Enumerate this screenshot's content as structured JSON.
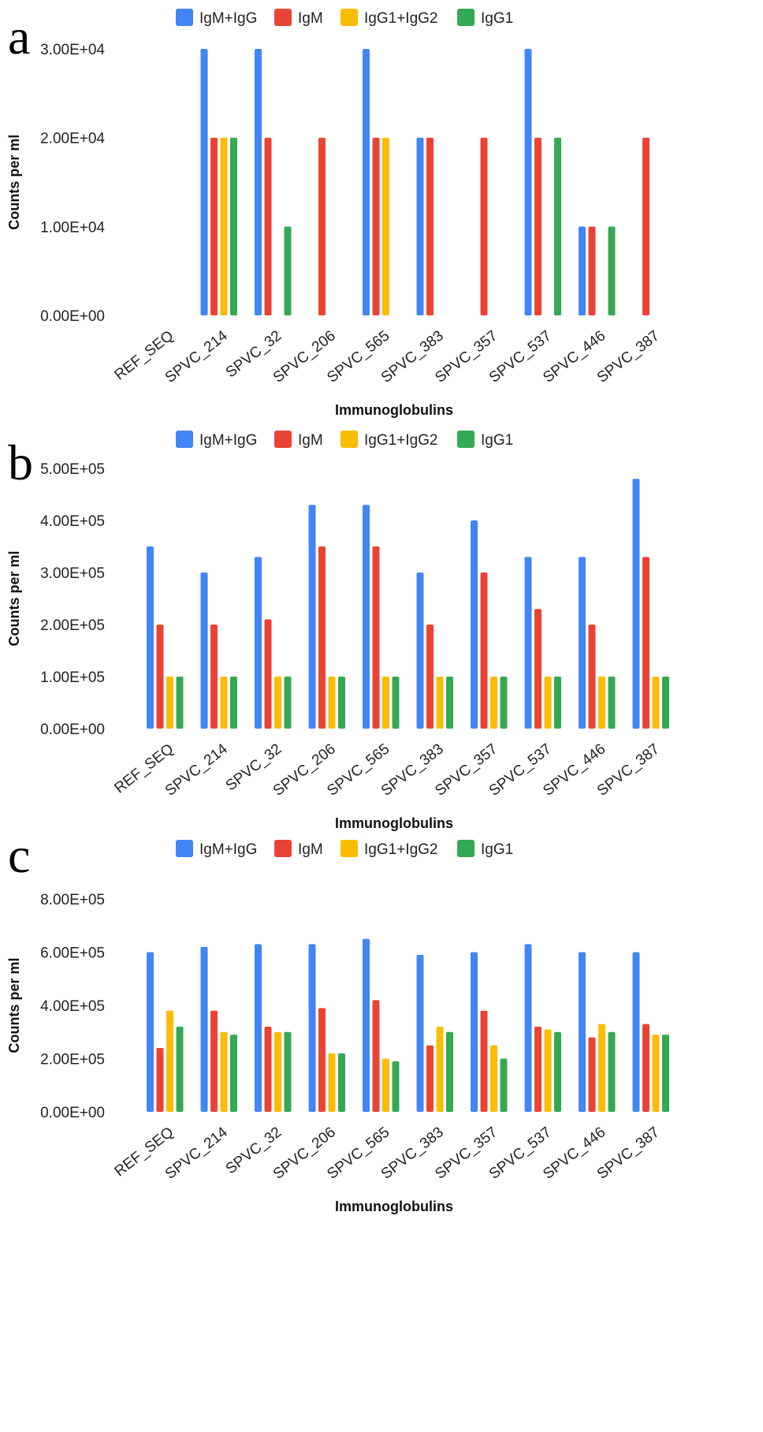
{
  "figure": {
    "colors": {
      "IgM+IgG": "#4285F4",
      "IgM": "#EA4335",
      "IgG1+IgG2": "#FBBC04",
      "IgG1": "#34A853"
    },
    "legend": [
      "IgM+IgG",
      "IgM",
      "IgG1+IgG2",
      "IgG1"
    ]
  },
  "chart_data": [
    {
      "panel": "a",
      "type": "bar",
      "title": "",
      "xlabel": "Immunoglobulins",
      "ylabel": "Counts per ml",
      "ylim": [
        0,
        30000
      ],
      "yticks": [
        "0.00E+00",
        "1.00E+04",
        "2.00E+04",
        "3.00E+04"
      ],
      "legend_position": "top",
      "categories": [
        "REF_SEQ",
        "SPVC_214",
        "SPVC_32",
        "SPVC_206",
        "SPVC_565",
        "SPVC_383",
        "SPVC_357",
        "SPVC_537",
        "SPVC_446",
        "SPVC_387"
      ],
      "series": [
        {
          "name": "IgM+IgG",
          "values": [
            0,
            30000,
            30000,
            0,
            30000,
            20000,
            0,
            30000,
            10000,
            0
          ]
        },
        {
          "name": "IgM",
          "values": [
            0,
            20000,
            20000,
            20000,
            20000,
            20000,
            20000,
            20000,
            10000,
            20000
          ]
        },
        {
          "name": "IgG1+IgG2",
          "values": [
            0,
            20000,
            0,
            0,
            20000,
            0,
            0,
            0,
            0,
            0
          ]
        },
        {
          "name": "IgG1",
          "values": [
            0,
            20000,
            10000,
            0,
            0,
            0,
            0,
            20000,
            10000,
            0
          ]
        }
      ]
    },
    {
      "panel": "b",
      "type": "bar",
      "title": "",
      "xlabel": "Immunoglobulins",
      "ylabel": "Counts per ml",
      "ylim": [
        0,
        500000
      ],
      "yticks": [
        "0.00E+00",
        "1.00E+05",
        "2.00E+05",
        "3.00E+05",
        "4.00E+05",
        "5.00E+05"
      ],
      "legend_position": "top",
      "categories": [
        "REF_SEQ",
        "SPVC_214",
        "SPVC_32",
        "SPVC_206",
        "SPVC_565",
        "SPVC_383",
        "SPVC_357",
        "SPVC_537",
        "SPVC_446",
        "SPVC_387"
      ],
      "series": [
        {
          "name": "IgM+IgG",
          "values": [
            350000,
            300000,
            330000,
            430000,
            430000,
            300000,
            400000,
            330000,
            330000,
            480000
          ]
        },
        {
          "name": "IgM",
          "values": [
            200000,
            200000,
            210000,
            350000,
            350000,
            200000,
            300000,
            230000,
            200000,
            330000
          ]
        },
        {
          "name": "IgG1+IgG2",
          "values": [
            100000,
            100000,
            100000,
            100000,
            100000,
            100000,
            100000,
            100000,
            100000,
            100000
          ]
        },
        {
          "name": "IgG1",
          "values": [
            100000,
            100000,
            100000,
            100000,
            100000,
            100000,
            100000,
            100000,
            100000,
            100000
          ]
        }
      ]
    },
    {
      "panel": "c",
      "type": "bar",
      "title": "",
      "xlabel": "Immunoglobulins",
      "ylabel": "Counts per ml",
      "ylim": [
        0,
        800000
      ],
      "yticks": [
        "0.00E+00",
        "2.00E+05",
        "4.00E+05",
        "6.00E+05",
        "8.00E+05"
      ],
      "legend_position": "top",
      "categories": [
        "REF_SEQ",
        "SPVC_214",
        "SPVC_32",
        "SPVC_206",
        "SPVC_565",
        "SPVC_383",
        "SPVC_357",
        "SPVC_537",
        "SPVC_446",
        "SPVC_387"
      ],
      "series": [
        {
          "name": "IgM+IgG",
          "values": [
            600000,
            620000,
            630000,
            630000,
            650000,
            590000,
            600000,
            630000,
            600000,
            600000
          ]
        },
        {
          "name": "IgM",
          "values": [
            240000,
            380000,
            320000,
            390000,
            420000,
            250000,
            380000,
            320000,
            280000,
            330000
          ]
        },
        {
          "name": "IgG1+IgG2",
          "values": [
            380000,
            300000,
            300000,
            220000,
            200000,
            320000,
            250000,
            310000,
            330000,
            290000
          ]
        },
        {
          "name": "IgG1",
          "values": [
            320000,
            290000,
            300000,
            220000,
            190000,
            300000,
            200000,
            300000,
            300000,
            290000
          ]
        }
      ]
    }
  ]
}
